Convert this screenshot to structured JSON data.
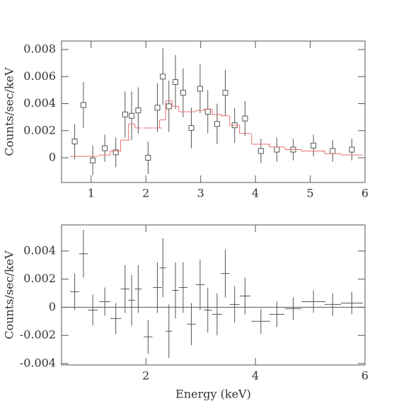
{
  "chart_data": [
    {
      "type": "errorbar",
      "ylabel": "Counts/sec/keV",
      "x": [
        0.7,
        0.86,
        1.03,
        1.25,
        1.45,
        1.62,
        1.74,
        1.86,
        2.04,
        2.21,
        2.31,
        2.42,
        2.54,
        2.68,
        2.83,
        2.99,
        3.13,
        3.3,
        3.45,
        3.62,
        3.81,
        4.1,
        4.39,
        4.69,
        5.06,
        5.41,
        5.76
      ],
      "xerr": [
        0.08,
        0.08,
        0.09,
        0.1,
        0.1,
        0.08,
        0.06,
        0.06,
        0.08,
        0.08,
        0.06,
        0.06,
        0.06,
        0.08,
        0.08,
        0.08,
        0.07,
        0.09,
        0.08,
        0.09,
        0.1,
        0.17,
        0.14,
        0.15,
        0.22,
        0.15,
        0.2
      ],
      "series": [
        {
          "color": "#555555",
          "marker": "square",
          "values": [
            0.0012,
            0.0039,
            -0.0002,
            0.0007,
            0.0004,
            0.0032,
            0.0031,
            0.0035,
            0.0,
            0.0037,
            0.006,
            0.0038,
            0.0056,
            0.0048,
            0.0022,
            0.0051,
            0.0034,
            0.0025,
            0.0048,
            0.0024,
            0.0029,
            0.0005,
            0.0006,
            0.0006,
            0.0009,
            0.0005,
            0.0006
          ],
          "errors": [
            0.0013,
            0.0017,
            0.0011,
            0.001,
            0.0011,
            0.0017,
            0.0018,
            0.0017,
            0.0012,
            0.0018,
            0.0021,
            0.0019,
            0.002,
            0.0018,
            0.0015,
            0.0018,
            0.0016,
            0.0015,
            0.0017,
            0.0013,
            0.0013,
            0.0009,
            0.0009,
            0.0008,
            0.0008,
            0.0008,
            0.0008
          ]
        },
        {
          "color": "#e8706f",
          "marker": "step",
          "values": [
            0.0001,
            0.0001,
            0.0001,
            0.0002,
            0.0005,
            0.0013,
            0.0025,
            0.0022,
            0.0022,
            0.0022,
            0.0028,
            0.0042,
            0.0038,
            0.0034,
            0.0034,
            0.0035,
            0.0036,
            0.0032,
            0.0031,
            0.0024,
            0.0018,
            0.001,
            0.0008,
            0.0006,
            0.0005,
            0.0003,
            0.0002
          ]
        }
      ],
      "xlim": [
        0.46,
        6
      ],
      "ylim": [
        -0.00183,
        0.00863
      ],
      "xticks": [
        1,
        2,
        3,
        4,
        5,
        6
      ],
      "yticks": [
        0,
        0.002,
        0.004,
        0.006,
        0.008
      ]
    },
    {
      "type": "errorbar",
      "ylabel": "Counts/sec/keV",
      "xlabel": "Energy (keV)",
      "zero_line": true,
      "x": [
        0.7,
        0.86,
        1.03,
        1.25,
        1.45,
        1.62,
        1.74,
        1.86,
        2.04,
        2.21,
        2.31,
        2.42,
        2.54,
        2.68,
        2.83,
        2.99,
        3.13,
        3.3,
        3.45,
        3.62,
        3.81,
        4.1,
        4.39,
        4.69,
        5.06,
        5.41,
        5.76
      ],
      "xerr": [
        0.08,
        0.08,
        0.09,
        0.1,
        0.1,
        0.08,
        0.06,
        0.06,
        0.08,
        0.08,
        0.06,
        0.06,
        0.06,
        0.08,
        0.08,
        0.08,
        0.07,
        0.09,
        0.08,
        0.09,
        0.1,
        0.17,
        0.14,
        0.15,
        0.22,
        0.15,
        0.2
      ],
      "series": [
        {
          "color": "#555555",
          "marker": "cross",
          "values": [
            0.0011,
            0.0038,
            -0.0002,
            0.0004,
            -0.0008,
            0.0013,
            0.0005,
            0.0013,
            -0.0021,
            0.0014,
            0.0028,
            -0.0017,
            0.0012,
            0.0014,
            -0.0012,
            0.0016,
            -0.0002,
            -0.0005,
            0.0024,
            0.0002,
            0.0008,
            -0.001,
            -0.0005,
            -0.0001,
            0.0004,
            0.0002,
            0.0003
          ],
          "errors": [
            0.0013,
            0.0017,
            0.0011,
            0.001,
            0.0011,
            0.0017,
            0.0018,
            0.0017,
            0.0012,
            0.0018,
            0.0021,
            0.0019,
            0.002,
            0.0018,
            0.0015,
            0.0018,
            0.0016,
            0.0015,
            0.0017,
            0.0013,
            0.0013,
            0.0009,
            0.0009,
            0.0008,
            0.0008,
            0.0008,
            0.0008
          ]
        }
      ],
      "xlim": [
        0.46,
        6
      ],
      "ylim": [
        -0.0041,
        0.00585
      ],
      "xticks": [
        2,
        4,
        6
      ],
      "yticks": [
        -0.004,
        -0.002,
        0,
        0.002,
        0.004
      ]
    }
  ]
}
